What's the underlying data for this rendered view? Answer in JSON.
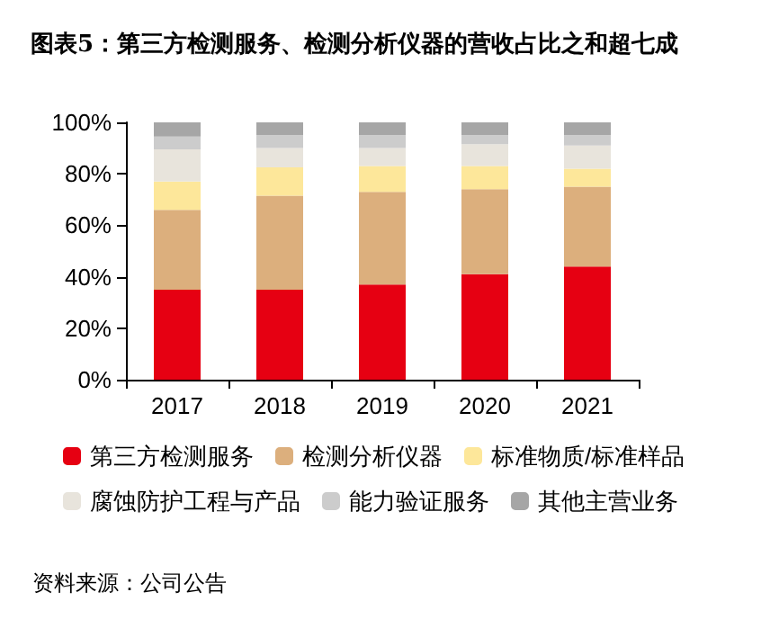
{
  "chart_data": {
    "type": "bar",
    "title": "图表5：第三方检测服务、检测分析仪器的营收占比之和超七成",
    "categories": [
      "2017",
      "2018",
      "2019",
      "2020",
      "2021"
    ],
    "stacked": true,
    "ylim": [
      0,
      100
    ],
    "yticks": [
      {
        "value": 0,
        "label": "0%"
      },
      {
        "value": 20,
        "label": "20%"
      },
      {
        "value": 40,
        "label": "40%"
      },
      {
        "value": 60,
        "label": "60%"
      },
      {
        "value": 80,
        "label": "80%"
      },
      {
        "value": 100,
        "label": "100%"
      }
    ],
    "grid": false,
    "legend": "bottom",
    "annotations": [
      "资料来源：公司公告"
    ],
    "series": [
      {
        "name": "第三方检测服务",
        "color": "#e60012",
        "values": [
          35,
          35,
          37,
          41,
          44
        ]
      },
      {
        "name": "检测分析仪器",
        "color": "#dcaf7d",
        "values": [
          31,
          36.5,
          36,
          33,
          31
        ]
      },
      {
        "name": "标准物质/标准样品",
        "color": "#fde79a",
        "values": [
          11,
          11,
          10,
          9,
          7
        ]
      },
      {
        "name": "腐蚀防护工程与产品",
        "color": "#e8e4dc",
        "values": [
          12.5,
          7.5,
          7,
          8.5,
          9
        ]
      },
      {
        "name": "能力验证服务",
        "color": "#cccccc",
        "values": [
          5,
          5,
          5,
          3.5,
          4
        ]
      },
      {
        "name": "其他主营业务",
        "color": "#a6a6a6",
        "values": [
          5.5,
          5,
          5,
          5,
          5
        ]
      }
    ]
  }
}
